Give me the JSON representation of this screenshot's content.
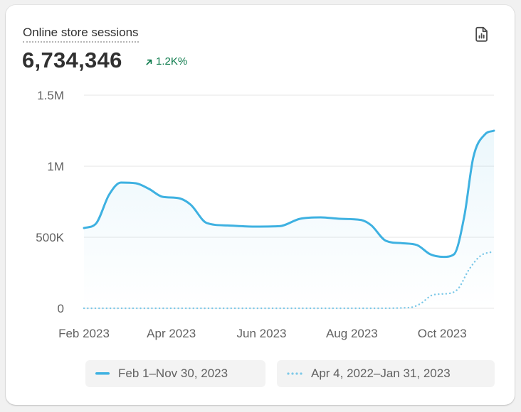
{
  "card": {
    "title": "Online store sessions",
    "value": "6,734,346",
    "delta": "1.2K%",
    "delta_color": "#0c7a4b",
    "report_icon": "report-icon"
  },
  "legend": {
    "primary": "Feb 1–Nov 30, 2023",
    "comparison": "Apr 4, 2022–Jan 31, 2023"
  },
  "chart_data": {
    "type": "line",
    "title": "",
    "xlabel": "",
    "ylabel": "",
    "ylim": [
      0,
      1500000
    ],
    "yticks": [
      {
        "value": 0,
        "label": "0"
      },
      {
        "value": 500000,
        "label": "500K"
      },
      {
        "value": 1000000,
        "label": "1M"
      },
      {
        "value": 1500000,
        "label": "1.5M"
      }
    ],
    "xticks": [
      {
        "date": "2023-02-01",
        "label": "Feb 2023"
      },
      {
        "date": "2023-04-01",
        "label": "Apr 2023"
      },
      {
        "date": "2023-06-01",
        "label": "Jun 2023"
      },
      {
        "date": "2023-08-01",
        "label": "Aug 2023"
      },
      {
        "date": "2023-10-01",
        "label": "Oct 2023"
      }
    ],
    "grid": true,
    "legend_position": "bottom",
    "series": [
      {
        "name": "Feb 1–Nov 30, 2023",
        "color": "#3eb1e1",
        "style": "solid",
        "points": [
          {
            "x": "2023-02-01",
            "y": 565000
          },
          {
            "x": "2023-02-09",
            "y": 595000
          },
          {
            "x": "2023-02-18",
            "y": 800000
          },
          {
            "x": "2023-02-26",
            "y": 885000
          },
          {
            "x": "2023-03-08",
            "y": 880000
          },
          {
            "x": "2023-03-17",
            "y": 840000
          },
          {
            "x": "2023-03-26",
            "y": 785000
          },
          {
            "x": "2023-04-06",
            "y": 775000
          },
          {
            "x": "2023-04-14",
            "y": 730000
          },
          {
            "x": "2023-04-25",
            "y": 600000
          },
          {
            "x": "2023-05-09",
            "y": 583000
          },
          {
            "x": "2023-05-27",
            "y": 575000
          },
          {
            "x": "2023-06-13",
            "y": 578000
          },
          {
            "x": "2023-06-27",
            "y": 630000
          },
          {
            "x": "2023-07-11",
            "y": 640000
          },
          {
            "x": "2023-07-24",
            "y": 630000
          },
          {
            "x": "2023-08-07",
            "y": 622000
          },
          {
            "x": "2023-08-14",
            "y": 585000
          },
          {
            "x": "2023-08-24",
            "y": 475000
          },
          {
            "x": "2023-09-04",
            "y": 458000
          },
          {
            "x": "2023-09-14",
            "y": 445000
          },
          {
            "x": "2023-09-23",
            "y": 380000
          },
          {
            "x": "2023-10-02",
            "y": 362000
          },
          {
            "x": "2023-10-09",
            "y": 380000
          },
          {
            "x": "2023-10-16",
            "y": 650000
          },
          {
            "x": "2023-10-22",
            "y": 1060000
          },
          {
            "x": "2023-10-30",
            "y": 1225000
          },
          {
            "x": "2023-11-05",
            "y": 1250000
          }
        ]
      },
      {
        "name": "Apr 4, 2022–Jan 31, 2023",
        "color": "#7cc8e8",
        "style": "dotted",
        "points": [
          {
            "x": "2023-02-01",
            "y": 0
          },
          {
            "x": "2023-08-14",
            "y": 0
          },
          {
            "x": "2023-09-09",
            "y": 5000
          },
          {
            "x": "2023-09-16",
            "y": 30000
          },
          {
            "x": "2023-09-25",
            "y": 95000
          },
          {
            "x": "2023-10-06",
            "y": 105000
          },
          {
            "x": "2023-10-12",
            "y": 140000
          },
          {
            "x": "2023-10-19",
            "y": 270000
          },
          {
            "x": "2023-10-27",
            "y": 370000
          },
          {
            "x": "2023-11-05",
            "y": 400000
          }
        ]
      }
    ]
  }
}
